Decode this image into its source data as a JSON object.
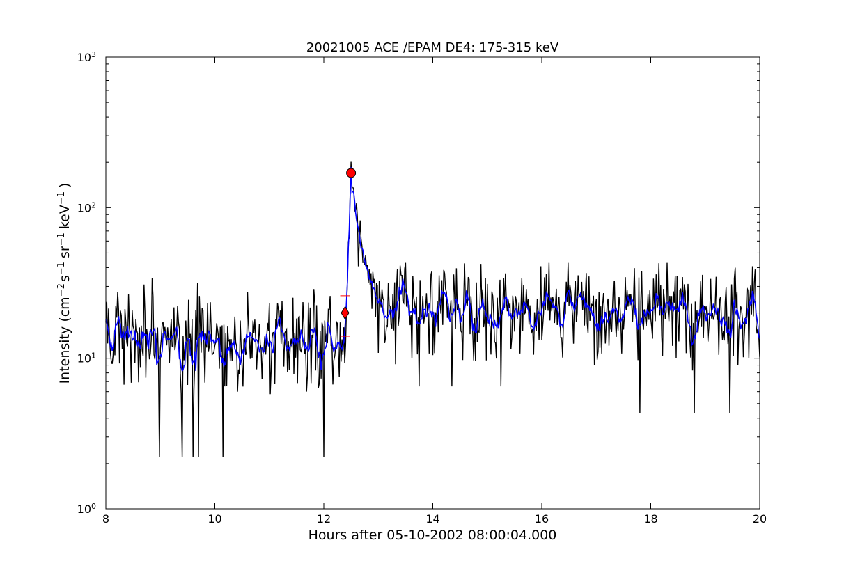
{
  "chart_data": {
    "type": "line",
    "title": "20021005 ACE /EPAM DE4: 175-315 keV",
    "xlabel": "Hours after 05-10-2002 08:00:04.000",
    "ylabel": {
      "base": "Intensity (cm",
      "sup1": "−2",
      "mid1": "s",
      "sup2": "−1",
      "mid2": "sr",
      "sup3": "−1",
      "mid3": "keV",
      "sup4": "−1",
      "end": ")"
    },
    "xlim": [
      8,
      20
    ],
    "ylim": [
      1,
      1000
    ],
    "yscale": "log",
    "grid": false,
    "x_ticks": [
      8,
      10,
      12,
      14,
      16,
      18,
      20
    ],
    "x_tick_labels": [
      "8",
      "10",
      "12",
      "14",
      "16",
      "18",
      "20"
    ],
    "y_ticks": [
      1,
      10,
      100,
      1000
    ],
    "y_tick_labels": [
      {
        "base": "10",
        "exp": "0"
      },
      {
        "base": "10",
        "exp": "1"
      },
      {
        "base": "10",
        "exp": "2"
      },
      {
        "base": "10",
        "exp": "3"
      }
    ],
    "series": [
      {
        "role": "raw",
        "color": "#000000",
        "segments": [
          {
            "x": [
              8.0,
              12.4
            ],
            "level": 14,
            "min": 2.2,
            "max": 34
          },
          {
            "x": [
              12.4,
              12.5
            ],
            "rise": [
              14,
              170
            ]
          },
          {
            "x": [
              12.5,
              13.0
            ],
            "decay": [
              170,
              30
            ]
          },
          {
            "x": [
              13.0,
              20.0
            ],
            "level": 22,
            "min": 4.3,
            "max": 43
          }
        ],
        "notable_dips": [
          {
            "x": 8.98,
            "y": 2.2
          },
          {
            "x": 9.4,
            "y": 2.2
          },
          {
            "x": 9.6,
            "y": 2.2
          },
          {
            "x": 9.7,
            "y": 2.2
          },
          {
            "x": 10.15,
            "y": 2.2
          },
          {
            "x": 12.0,
            "y": 2.2
          },
          {
            "x": 13.75,
            "y": 6.5
          },
          {
            "x": 14.35,
            "y": 6.5
          },
          {
            "x": 15.25,
            "y": 6.5
          },
          {
            "x": 17.8,
            "y": 4.3
          },
          {
            "x": 18.8,
            "y": 4.3
          },
          {
            "x": 19.45,
            "y": 4.3
          }
        ]
      },
      {
        "role": "smoothed",
        "color": "#0000ff"
      }
    ],
    "markers": [
      {
        "type": "circle",
        "x": 12.5,
        "y": 170,
        "color": "#ff0000"
      },
      {
        "type": "diamond",
        "x": 12.39,
        "y": 20,
        "color": "#ff0000"
      },
      {
        "type": "plus",
        "x": 12.39,
        "y": 26,
        "color": "#ff0000"
      },
      {
        "type": "plus",
        "x": 12.39,
        "y": 14,
        "color": "#ff0000"
      }
    ]
  }
}
